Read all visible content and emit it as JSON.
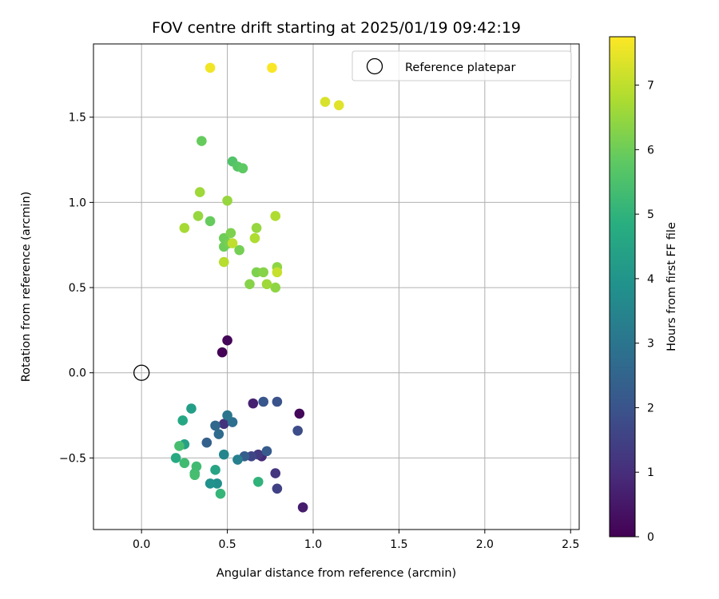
{
  "chart_data": {
    "type": "scatter",
    "title": "FOV centre drift starting at 2025/01/19 09:42:19",
    "xlabel": "Angular distance from reference (arcmin)",
    "ylabel": "Rotation from reference (arcmin)",
    "xlim": [
      -0.28,
      2.55
    ],
    "ylim": [
      -0.92,
      1.93
    ],
    "xticks": [
      0.0,
      0.5,
      1.0,
      1.5,
      2.0,
      2.5
    ],
    "xtick_labels": [
      "0.0",
      "0.5",
      "1.0",
      "1.5",
      "2.0",
      "2.5"
    ],
    "yticks": [
      -0.5,
      0.0,
      0.5,
      1.0,
      1.5
    ],
    "ytick_labels": [
      "−0.5",
      "0.0",
      "0.5",
      "1.0",
      "1.5"
    ],
    "grid": true,
    "legend": {
      "placement": "top-right",
      "entries": [
        "Reference platepar"
      ]
    },
    "reference_point": {
      "x": 0.0,
      "y": 0.0
    },
    "colorbar": {
      "label": "Hours from first FF file",
      "colormap": "viridis",
      "range": [
        0,
        7.75
      ],
      "ticks": [
        0,
        1,
        2,
        3,
        4,
        5,
        6,
        7
      ],
      "tick_labels": [
        "0",
        "1",
        "2",
        "3",
        "4",
        "5",
        "6",
        "7"
      ]
    },
    "points": [
      {
        "x": 0.47,
        "y": 0.12,
        "c": 0.05
      },
      {
        "x": 0.5,
        "y": 0.19,
        "c": 0.1
      },
      {
        "x": 0.92,
        "y": -0.24,
        "c": 0.15
      },
      {
        "x": 0.94,
        "y": -0.79,
        "c": 0.6
      },
      {
        "x": 0.65,
        "y": -0.18,
        "c": 0.7
      },
      {
        "x": 0.7,
        "y": -0.49,
        "c": 0.9
      },
      {
        "x": 0.78,
        "y": -0.59,
        "c": 1.2
      },
      {
        "x": 0.48,
        "y": -0.3,
        "c": 1.1
      },
      {
        "x": 0.68,
        "y": -0.48,
        "c": 1.3
      },
      {
        "x": 0.79,
        "y": -0.68,
        "c": 1.5
      },
      {
        "x": 0.64,
        "y": -0.49,
        "c": 1.6
      },
      {
        "x": 0.91,
        "y": -0.34,
        "c": 1.8
      },
      {
        "x": 0.79,
        "y": -0.17,
        "c": 2.0
      },
      {
        "x": 0.71,
        "y": -0.17,
        "c": 2.1
      },
      {
        "x": 0.73,
        "y": -0.46,
        "c": 2.2
      },
      {
        "x": 0.6,
        "y": -0.49,
        "c": 2.3
      },
      {
        "x": 0.38,
        "y": -0.41,
        "c": 2.4
      },
      {
        "x": 0.43,
        "y": -0.31,
        "c": 2.6
      },
      {
        "x": 0.45,
        "y": -0.36,
        "c": 2.7
      },
      {
        "x": 0.53,
        "y": -0.29,
        "c": 2.8
      },
      {
        "x": 0.5,
        "y": -0.25,
        "c": 3.0
      },
      {
        "x": 0.56,
        "y": -0.51,
        "c": 3.3
      },
      {
        "x": 0.48,
        "y": -0.48,
        "c": 3.5
      },
      {
        "x": 0.44,
        "y": -0.65,
        "c": 3.8
      },
      {
        "x": 0.4,
        "y": -0.65,
        "c": 3.9
      },
      {
        "x": 0.29,
        "y": -0.21,
        "c": 4.3
      },
      {
        "x": 0.25,
        "y": -0.42,
        "c": 4.4
      },
      {
        "x": 0.43,
        "y": -0.57,
        "c": 4.5
      },
      {
        "x": 0.24,
        "y": -0.28,
        "c": 4.6
      },
      {
        "x": 0.2,
        "y": -0.5,
        "c": 4.7
      },
      {
        "x": 0.68,
        "y": -0.64,
        "c": 5.0
      },
      {
        "x": 0.46,
        "y": -0.71,
        "c": 5.1
      },
      {
        "x": 0.31,
        "y": -0.59,
        "c": 5.2
      },
      {
        "x": 0.25,
        "y": -0.53,
        "c": 5.3
      },
      {
        "x": 0.32,
        "y": -0.55,
        "c": 5.3
      },
      {
        "x": 0.22,
        "y": -0.43,
        "c": 5.4
      },
      {
        "x": 0.31,
        "y": -0.6,
        "c": 5.4
      },
      {
        "x": 0.53,
        "y": 1.24,
        "c": 5.6
      },
      {
        "x": 0.56,
        "y": 1.21,
        "c": 5.7
      },
      {
        "x": 0.59,
        "y": 1.2,
        "c": 5.8
      },
      {
        "x": 0.35,
        "y": 1.36,
        "c": 5.9
      },
      {
        "x": 0.4,
        "y": 0.89,
        "c": 5.9
      },
      {
        "x": 0.48,
        "y": 0.79,
        "c": 6.0
      },
      {
        "x": 0.48,
        "y": 0.74,
        "c": 6.0
      },
      {
        "x": 0.51,
        "y": 0.76,
        "c": 6.1
      },
      {
        "x": 0.57,
        "y": 0.72,
        "c": 6.1
      },
      {
        "x": 0.52,
        "y": 0.82,
        "c": 6.2
      },
      {
        "x": 0.67,
        "y": 0.59,
        "c": 6.2
      },
      {
        "x": 0.71,
        "y": 0.59,
        "c": 6.3
      },
      {
        "x": 0.63,
        "y": 0.52,
        "c": 6.3
      },
      {
        "x": 0.79,
        "y": 0.62,
        "c": 6.4
      },
      {
        "x": 0.78,
        "y": 0.5,
        "c": 6.4
      },
      {
        "x": 0.33,
        "y": 0.92,
        "c": 6.5
      },
      {
        "x": 0.5,
        "y": 1.01,
        "c": 6.5
      },
      {
        "x": 0.67,
        "y": 0.85,
        "c": 6.5
      },
      {
        "x": 0.73,
        "y": 0.52,
        "c": 6.6
      },
      {
        "x": 0.34,
        "y": 1.06,
        "c": 6.6
      },
      {
        "x": 0.25,
        "y": 0.85,
        "c": 6.7
      },
      {
        "x": 0.66,
        "y": 0.79,
        "c": 6.8
      },
      {
        "x": 0.78,
        "y": 0.92,
        "c": 6.8
      },
      {
        "x": 0.48,
        "y": 0.65,
        "c": 6.9
      },
      {
        "x": 0.53,
        "y": 0.76,
        "c": 7.0
      },
      {
        "x": 0.79,
        "y": 0.59,
        "c": 7.1
      },
      {
        "x": 1.07,
        "y": 1.59,
        "c": 7.3
      },
      {
        "x": 1.15,
        "y": 1.57,
        "c": 7.4
      },
      {
        "x": 0.4,
        "y": 1.79,
        "c": 7.6
      },
      {
        "x": 0.76,
        "y": 1.79,
        "c": 7.7
      }
    ]
  }
}
